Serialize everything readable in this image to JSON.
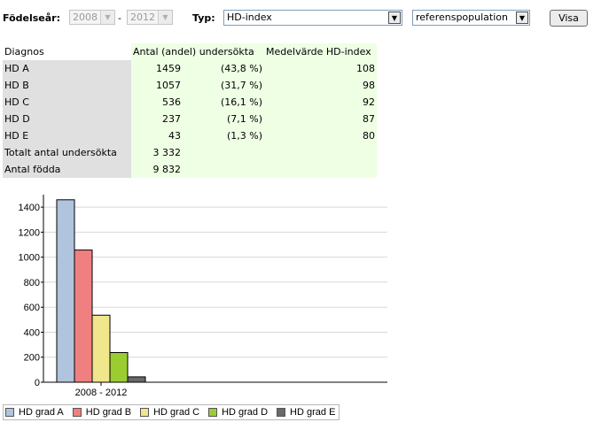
{
  "controls": {
    "birth_year_label": "Födelseår:",
    "year_from": "2008",
    "dash": "-",
    "year_to": "2012",
    "type_label": "Typ:",
    "type_value": "HD-index",
    "population_value": "referenspopulation",
    "show_button": "Visa"
  },
  "table": {
    "headers": [
      "Diagnos",
      "Antal (andel) undersökta",
      "Medelvärde HD-index"
    ],
    "rows": [
      {
        "label": "HD A",
        "count": "1459",
        "share": "(43,8 %)",
        "index": "108"
      },
      {
        "label": "HD B",
        "count": "1057",
        "share": "(31,7 %)",
        "index": "98"
      },
      {
        "label": "HD C",
        "count": "536",
        "share": "(16,1 %)",
        "index": "92"
      },
      {
        "label": "HD D",
        "count": "237",
        "share": "(7,1 %)",
        "index": "87"
      },
      {
        "label": "HD E",
        "count": "43",
        "share": "(1,3 %)",
        "index": "80"
      },
      {
        "label": "Totalt antal undersökta",
        "count": "3 332",
        "share": "",
        "index": ""
      },
      {
        "label": "Antal födda",
        "count": "9 832",
        "share": "",
        "index": ""
      }
    ]
  },
  "chart_data": {
    "type": "bar",
    "categories": [
      "2008 - 2012"
    ],
    "series": [
      {
        "name": "HD grad A",
        "values": [
          1459
        ],
        "color": "#b0c4de"
      },
      {
        "name": "HD grad B",
        "values": [
          1057
        ],
        "color": "#f08080"
      },
      {
        "name": "HD grad C",
        "values": [
          536
        ],
        "color": "#f0e68c"
      },
      {
        "name": "HD grad D",
        "values": [
          237
        ],
        "color": "#9acd32"
      },
      {
        "name": "HD grad E",
        "values": [
          43
        ],
        "color": "#696969"
      }
    ],
    "yticks": [
      "0",
      "200",
      "400",
      "600",
      "800",
      "1000",
      "1200",
      "1400"
    ],
    "ylim": [
      0,
      1500
    ],
    "grid": true,
    "legend": "bottom",
    "title": "",
    "xlabel": "",
    "ylabel": ""
  }
}
